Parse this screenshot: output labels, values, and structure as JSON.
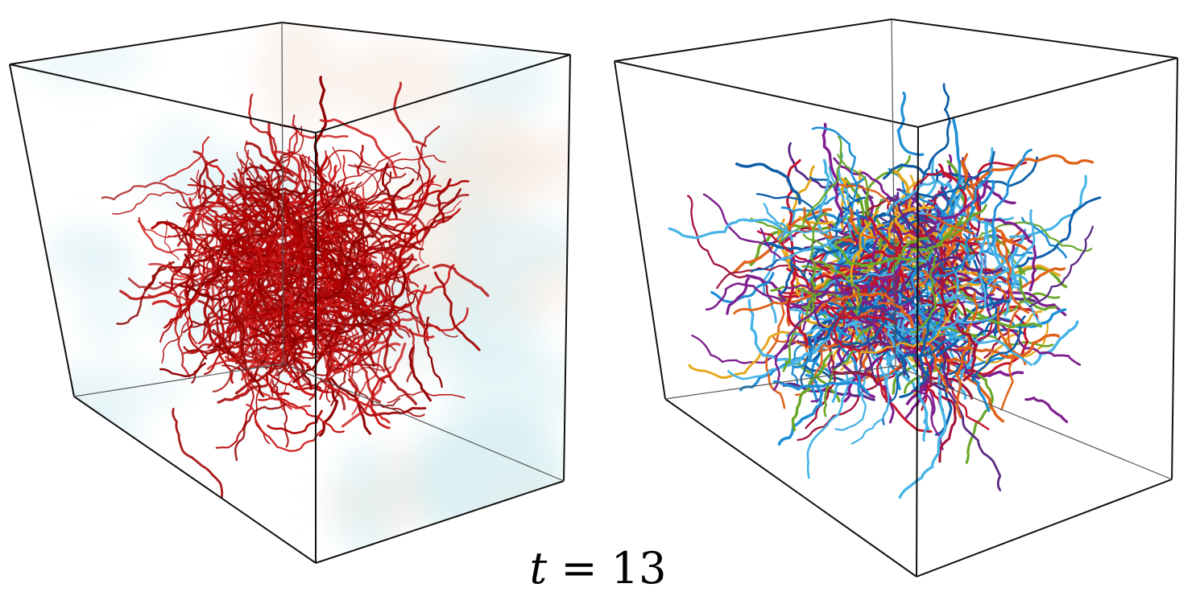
{
  "caption": {
    "variable": "t",
    "operator": "=",
    "value": "13"
  },
  "palettes": {
    "left_panel": [
      "#b30000",
      "#8f0000",
      "#cc1a1a",
      "#a30808"
    ],
    "left_haze": [
      "#d7eef2",
      "#f6e7dc",
      "#e3f2f5"
    ],
    "right_panel": [
      "#0f5fa8",
      "#1f8fd6",
      "#47b3e6",
      "#7f1f8f",
      "#a3133a",
      "#e6a81a",
      "#e0621a",
      "#6aa82a",
      "#c2162f",
      "#5b2a86"
    ]
  }
}
